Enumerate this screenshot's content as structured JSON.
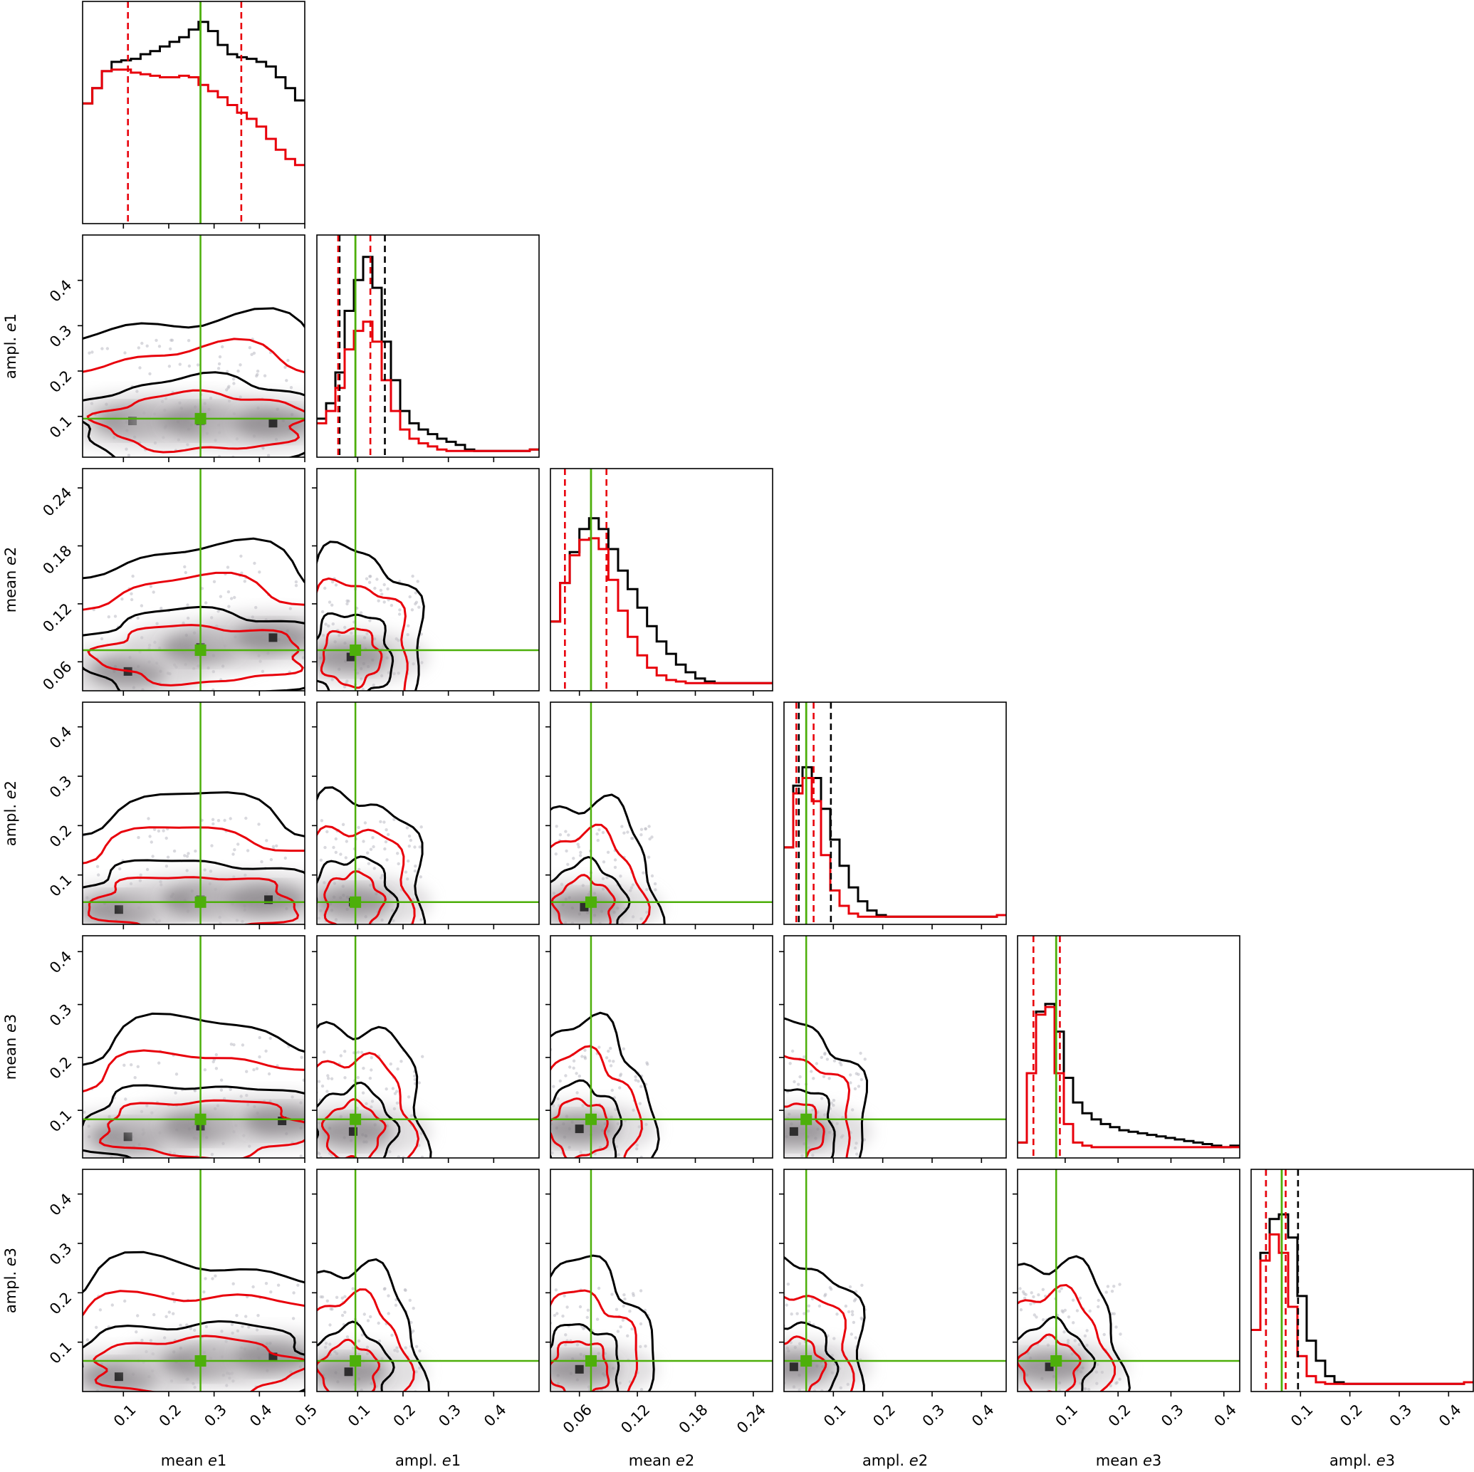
{
  "chart_data": {
    "type": "corner",
    "parameters": [
      {
        "name": "mean e1",
        "range": [
          0.01,
          0.5
        ],
        "ticks": [
          0.1,
          0.2,
          0.3,
          0.4,
          0.5
        ],
        "tick_labels": [
          "0.1",
          "0.2",
          "0.3",
          "0.4",
          "0.5"
        ],
        "label_prefix": "mean ",
        "label_italic": "e",
        "label_suffix": "1"
      },
      {
        "name": "ampl. e1",
        "range": [
          0.01,
          0.5
        ],
        "ticks": [
          0.1,
          0.2,
          0.3,
          0.4
        ],
        "tick_labels": [
          "0.1",
          "0.2",
          "0.3",
          "0.4"
        ],
        "label_prefix": "ampl. ",
        "label_italic": "e",
        "label_suffix": "1"
      },
      {
        "name": "mean e2",
        "range": [
          0.03,
          0.26
        ],
        "ticks": [
          0.06,
          0.12,
          0.18,
          0.24
        ],
        "tick_labels": [
          "0.06",
          "0.12",
          "0.18",
          "0.24"
        ],
        "label_prefix": "mean ",
        "label_italic": "e",
        "label_suffix": "2"
      },
      {
        "name": "ampl. e2",
        "range": [
          0.0,
          0.45
        ],
        "ticks": [
          0.1,
          0.2,
          0.3,
          0.4
        ],
        "tick_labels": [
          "0.1",
          "0.2",
          "0.3",
          "0.4"
        ],
        "label_prefix": "ampl. ",
        "label_italic": "e",
        "label_suffix": "2"
      },
      {
        "name": "mean e3",
        "range": [
          0.01,
          0.43
        ],
        "ticks": [
          0.1,
          0.2,
          0.3,
          0.4
        ],
        "tick_labels": [
          "0.1",
          "0.2",
          "0.3",
          "0.4"
        ],
        "label_prefix": "mean ",
        "label_italic": "e",
        "label_suffix": "3"
      },
      {
        "name": "ampl. e3",
        "range": [
          0.0,
          0.45
        ],
        "ticks": [
          0.1,
          0.2,
          0.3,
          0.4
        ],
        "tick_labels": [
          "0.1",
          "0.2",
          "0.3",
          "0.4"
        ],
        "label_prefix": "ampl. ",
        "label_italic": "e",
        "label_suffix": "3"
      }
    ],
    "truths": [
      0.27,
      0.095,
      0.072,
      0.045,
      0.083,
      0.062
    ],
    "quantile_lines": {
      "red": [
        [
          0.11,
          0.36
        ],
        [
          0.057,
          0.128
        ],
        [
          0.045,
          0.088
        ],
        [
          0.025,
          0.06
        ],
        [
          0.04,
          0.09
        ],
        [
          0.03,
          0.07
        ]
      ],
      "black": [
        [
          null,
          null
        ],
        [
          0.06,
          0.16
        ],
        [
          null,
          null
        ],
        [
          0.03,
          0.095
        ],
        [
          null,
          null
        ],
        [
          0.03,
          0.095
        ]
      ]
    },
    "histograms": [
      {
        "black": [
          0.78,
          0.88,
          0.99,
          1.05,
          1.06,
          1.07,
          1.1,
          1.12,
          1.15,
          1.18,
          1.21,
          1.26,
          1.31,
          1.25,
          1.16,
          1.1,
          1.08,
          1.07,
          1.05,
          1.02,
          0.95,
          0.88,
          0.8
        ],
        "red": [
          0.78,
          0.88,
          0.99,
          1.0,
          1.0,
          0.98,
          0.97,
          0.96,
          0.95,
          0.95,
          0.96,
          0.95,
          0.9,
          0.86,
          0.82,
          0.77,
          0.72,
          0.68,
          0.63,
          0.55,
          0.48,
          0.42,
          0.38
        ]
      },
      {
        "black": [
          0.25,
          0.35,
          0.55,
          0.95,
          1.15,
          1.3,
          1.1,
          0.75,
          0.5,
          0.3,
          0.22,
          0.18,
          0.15,
          0.12,
          0.1,
          0.08,
          0.05,
          0.04,
          0.04,
          0.04,
          0.04,
          0.04,
          0.04,
          0.05
        ],
        "red": [
          0.22,
          0.3,
          0.45,
          0.7,
          0.82,
          0.88,
          0.75,
          0.5,
          0.3,
          0.18,
          0.12,
          0.09,
          0.07,
          0.05,
          0.04,
          0.04,
          0.04,
          0.04,
          0.04,
          0.04,
          0.04,
          0.04,
          0.04,
          0.05
        ]
      },
      {
        "black": [
          0.45,
          0.7,
          0.9,
          1.05,
          1.12,
          1.05,
          0.92,
          0.78,
          0.66,
          0.54,
          0.42,
          0.32,
          0.24,
          0.17,
          0.12,
          0.08,
          0.06,
          0.05,
          0.05,
          0.05,
          0.05,
          0.05,
          0.05
        ],
        "red": [
          0.45,
          0.7,
          0.88,
          0.98,
          0.99,
          0.92,
          0.72,
          0.52,
          0.35,
          0.23,
          0.15,
          0.1,
          0.07,
          0.06,
          0.05,
          0.05,
          0.05,
          0.05,
          0.05,
          0.05,
          0.05,
          0.05,
          0.05
        ]
      },
      {
        "black": [
          0.5,
          0.9,
          1.02,
          0.95,
          0.75,
          0.55,
          0.38,
          0.24,
          0.15,
          0.09,
          0.06,
          0.05,
          0.05,
          0.05,
          0.05,
          0.05,
          0.05,
          0.05,
          0.05,
          0.05,
          0.05,
          0.05,
          0.05,
          0.06
        ],
        "red": [
          0.5,
          0.85,
          0.95,
          0.8,
          0.45,
          0.22,
          0.12,
          0.07,
          0.05,
          0.05,
          0.05,
          0.05,
          0.05,
          0.05,
          0.05,
          0.05,
          0.05,
          0.05,
          0.05,
          0.05,
          0.05,
          0.05,
          0.05,
          0.06
        ]
      },
      {
        "black": [
          0.1,
          0.55,
          0.95,
          1.0,
          0.82,
          0.52,
          0.36,
          0.29,
          0.25,
          0.22,
          0.2,
          0.18,
          0.17,
          0.16,
          0.15,
          0.14,
          0.13,
          0.12,
          0.11,
          0.1,
          0.09,
          0.08,
          0.07,
          0.08
        ],
        "red": [
          0.1,
          0.55,
          0.93,
          0.98,
          0.55,
          0.22,
          0.1,
          0.08,
          0.07,
          0.07,
          0.07,
          0.07,
          0.07,
          0.07,
          0.07,
          0.07,
          0.07,
          0.07,
          0.07,
          0.07,
          0.07,
          0.07,
          0.07,
          0.07
        ]
      },
      {
        "black": [
          0.4,
          0.9,
          1.12,
          1.15,
          1.0,
          0.62,
          0.33,
          0.2,
          0.1,
          0.06,
          0.05,
          0.05,
          0.05,
          0.05,
          0.05,
          0.05,
          0.05,
          0.05,
          0.05,
          0.05,
          0.05,
          0.05,
          0.05,
          0.06
        ],
        "red": [
          0.4,
          0.85,
          1.02,
          0.9,
          0.55,
          0.23,
          0.1,
          0.06,
          0.05,
          0.05,
          0.05,
          0.05,
          0.05,
          0.05,
          0.05,
          0.05,
          0.05,
          0.05,
          0.05,
          0.05,
          0.05,
          0.05,
          0.05,
          0.06
        ]
      }
    ],
    "density_peaks": {
      "1,0": [
        [
          0.12,
          0.09
        ],
        [
          0.27,
          0.09
        ],
        [
          0.43,
          0.085
        ]
      ],
      "2,0": [
        [
          0.11,
          0.05
        ],
        [
          0.27,
          0.075
        ],
        [
          0.43,
          0.085
        ]
      ],
      "2,1": [
        [
          0.085,
          0.065
        ]
      ],
      "3,0": [
        [
          0.09,
          0.03
        ],
        [
          0.27,
          0.05
        ],
        [
          0.42,
          0.05
        ]
      ],
      "3,1": [
        [
          0.09,
          0.045
        ]
      ],
      "3,2": [
        [
          0.065,
          0.035
        ]
      ],
      "4,0": [
        [
          0.11,
          0.05
        ],
        [
          0.27,
          0.07
        ],
        [
          0.45,
          0.08
        ]
      ],
      "4,1": [
        [
          0.09,
          0.06
        ]
      ],
      "4,2": [
        [
          0.06,
          0.065
        ]
      ],
      "4,3": [
        [
          0.02,
          0.06
        ]
      ],
      "5,0": [
        [
          0.09,
          0.03
        ],
        [
          0.27,
          0.06
        ],
        [
          0.43,
          0.07
        ]
      ],
      "5,1": [
        [
          0.08,
          0.04
        ]
      ],
      "5,2": [
        [
          0.06,
          0.045
        ]
      ],
      "5,3": [
        [
          0.02,
          0.05
        ]
      ],
      "5,4": [
        [
          0.07,
          0.05
        ]
      ]
    },
    "colors": {
      "primary": "#000000",
      "comparison": "#e8000b",
      "truth": "#4daf0a"
    },
    "grid": false,
    "legend": "none"
  }
}
